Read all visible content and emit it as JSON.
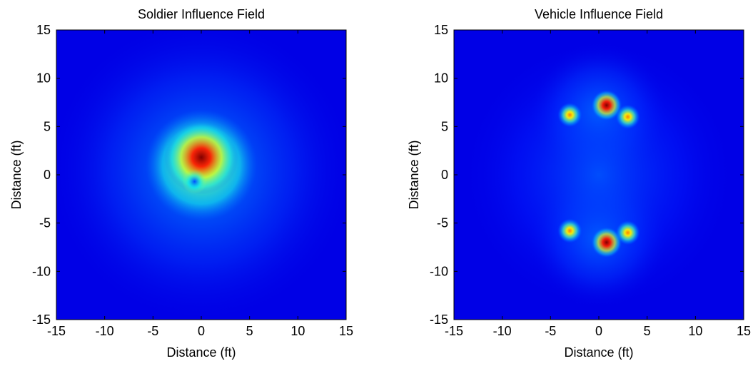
{
  "chart_data": [
    {
      "type": "heatmap",
      "title": "Soldier Influence Field",
      "xlabel": "Distance (ft)",
      "ylabel": "Distance (ft)",
      "xlim": [
        -15,
        15
      ],
      "ylim": [
        -15,
        15
      ],
      "xticks": [
        -15,
        -10,
        -5,
        0,
        5,
        10,
        15
      ],
      "yticks": [
        -15,
        -10,
        -5,
        0,
        5,
        10,
        15
      ],
      "colormap": "jet",
      "grid": false,
      "features": [
        {
          "kind": "peak",
          "x": 0.0,
          "y": 1.8,
          "intensity": 1.0,
          "spread_ft": 2.4
        },
        {
          "kind": "ring",
          "x": 0.0,
          "y": 1.0,
          "intensity": 0.55,
          "spread_ft": 3.6
        },
        {
          "kind": "halo",
          "x": 0.0,
          "y": 0.5,
          "intensity": 0.3,
          "spread_ft": 10.0
        },
        {
          "kind": "dip",
          "x": -0.7,
          "y": -0.7,
          "intensity": -0.85,
          "spread_ft": 0.8
        }
      ]
    },
    {
      "type": "heatmap",
      "title": "Vehicle Influence Field",
      "xlabel": "Distance (ft)",
      "ylabel": "Distance (ft)",
      "xlim": [
        -15,
        15
      ],
      "ylim": [
        -15,
        15
      ],
      "xticks": [
        -15,
        -10,
        -5,
        0,
        5,
        10,
        15
      ],
      "yticks": [
        -15,
        -10,
        -5,
        0,
        5,
        10,
        15
      ],
      "colormap": "jet",
      "grid": false,
      "features": [
        {
          "kind": "peak",
          "x": 0.8,
          "y": 7.2,
          "intensity": 1.0,
          "spread_ft": 1.0
        },
        {
          "kind": "peak",
          "x": -3.0,
          "y": 6.2,
          "intensity": 0.72,
          "spread_ft": 0.8
        },
        {
          "kind": "peak",
          "x": 3.0,
          "y": 6.0,
          "intensity": 0.72,
          "spread_ft": 0.8
        },
        {
          "kind": "peak",
          "x": 0.8,
          "y": -7.0,
          "intensity": 1.0,
          "spread_ft": 1.0
        },
        {
          "kind": "peak",
          "x": -3.0,
          "y": -5.8,
          "intensity": 0.72,
          "spread_ft": 0.8
        },
        {
          "kind": "peak",
          "x": 3.0,
          "y": -6.0,
          "intensity": 0.72,
          "spread_ft": 0.8
        },
        {
          "kind": "halo",
          "x": 0.0,
          "y": 6.5,
          "intensity": 0.32,
          "spread_ft": 4.5
        },
        {
          "kind": "halo",
          "x": 0.0,
          "y": -6.5,
          "intensity": 0.32,
          "spread_ft": 4.5
        },
        {
          "kind": "halo",
          "x": 0.0,
          "y": 0.0,
          "intensity": 0.18,
          "spread_ft": 9.0
        }
      ]
    }
  ]
}
